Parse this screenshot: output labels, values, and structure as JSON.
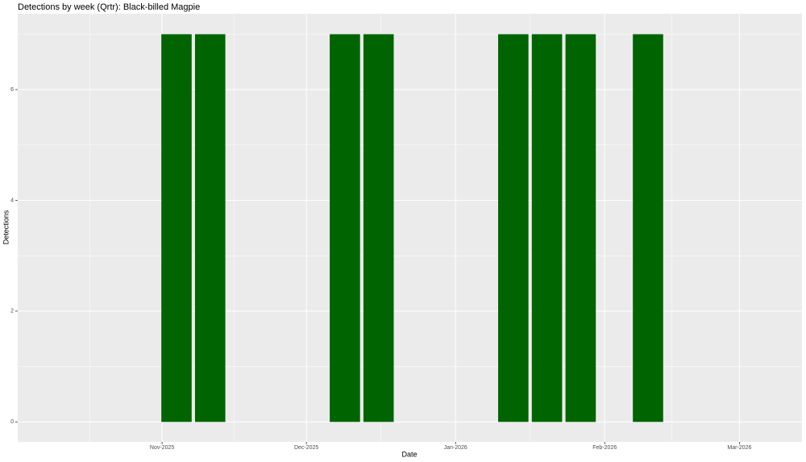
{
  "chart_data": {
    "type": "bar",
    "title": "Detections by week (Qrtr): Black-billed Magpie",
    "x_label": "Date",
    "y_label": "Detections",
    "x": [
      "2025-11-04",
      "2025-11-11",
      "2025-12-09",
      "2025-12-16",
      "2026-01-13",
      "2026-01-20",
      "2026-01-27",
      "2026-02-10"
    ],
    "values": [
      7,
      7,
      7,
      7,
      7,
      7,
      7,
      7
    ],
    "color": "#006400",
    "xlim": [
      "2025-10-02",
      "2026-03-14"
    ],
    "xticks": [
      {
        "value": "2025-11-01",
        "label": "Nov-2025"
      },
      {
        "value": "2025-12-01",
        "label": "Dec-2025"
      },
      {
        "value": "2026-01-01",
        "label": "Jan-2026"
      },
      {
        "value": "2026-02-01",
        "label": "Feb-2026"
      },
      {
        "value": "2026-03-01",
        "label": "Mar-2026"
      }
    ],
    "ylim": [
      -0.36,
      7.37
    ],
    "yticks": [
      0,
      2,
      4,
      6
    ],
    "grid": true
  }
}
